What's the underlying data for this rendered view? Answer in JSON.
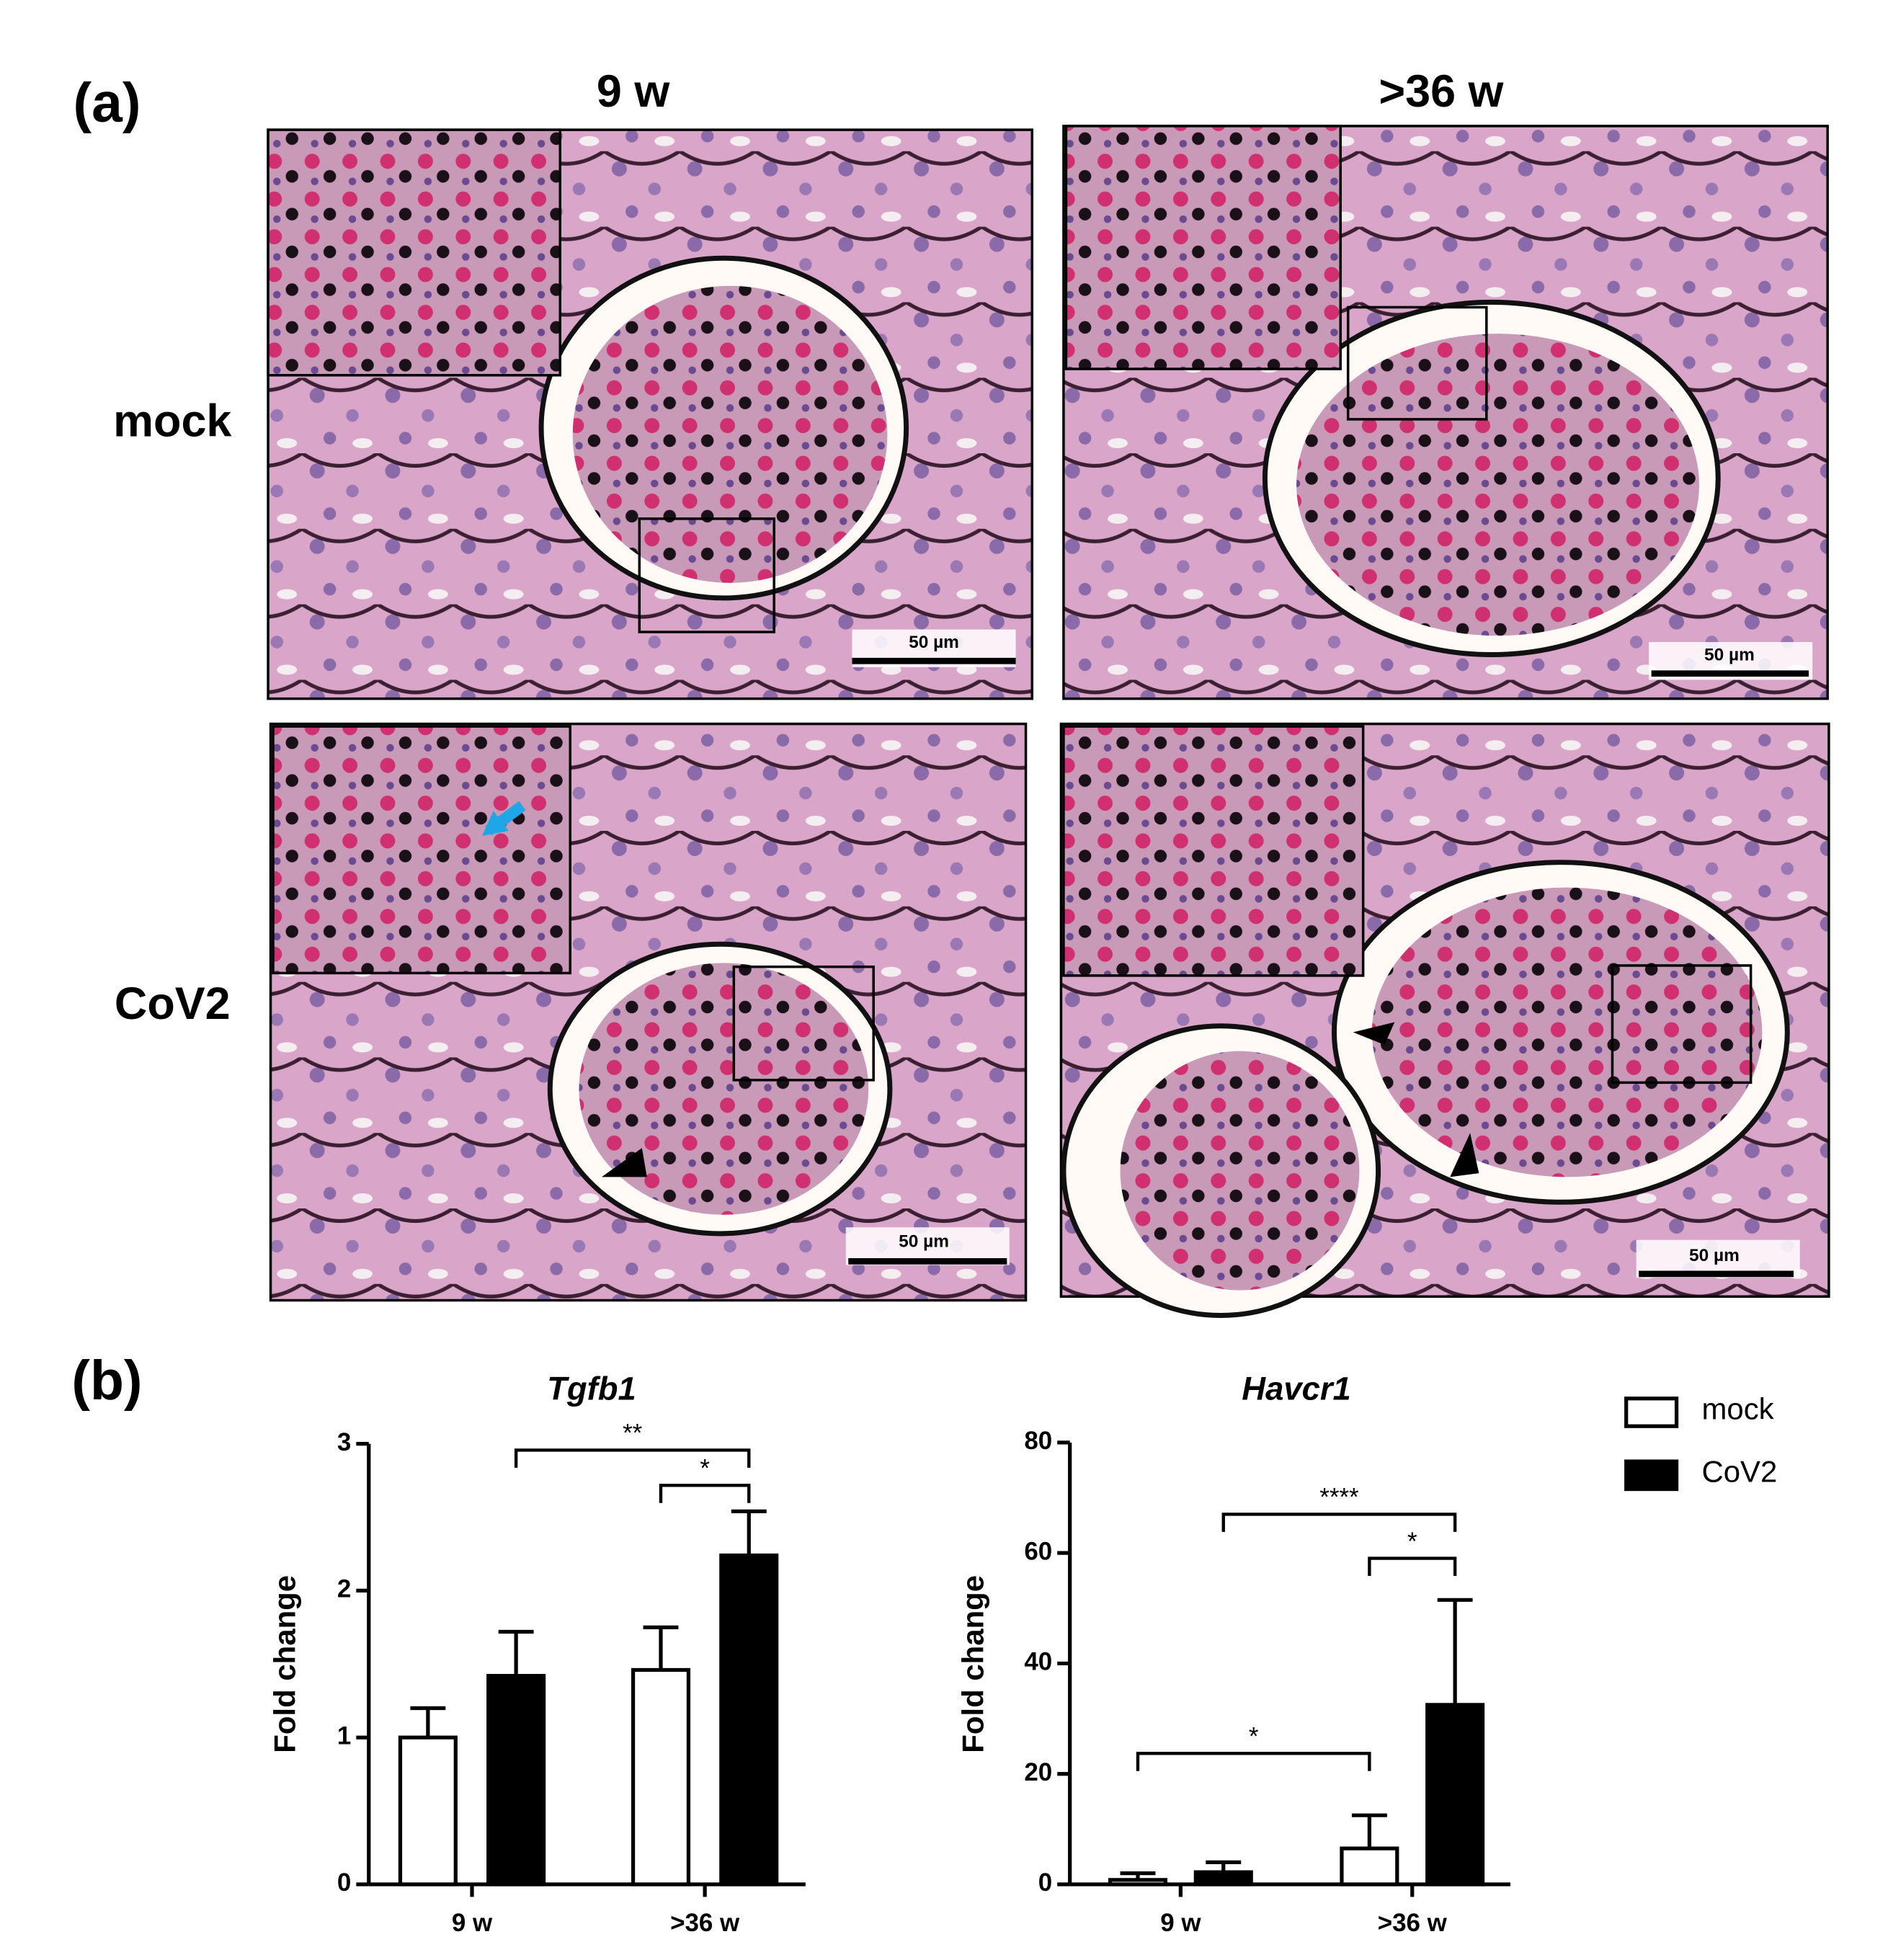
{
  "figure": {
    "panel_a": "(a)",
    "panel_b": "(b)",
    "columns": [
      "9 w",
      ">36 w"
    ],
    "rows": [
      "mock",
      "CoV2"
    ],
    "scale_bars": [
      "50 µm",
      "50 µm",
      "50 µm",
      "50 µm"
    ]
  },
  "chart_data": [
    {
      "type": "bar",
      "title": "Tgfb1",
      "y_label": "Fold change",
      "categories": [
        "9 w",
        ">36 w"
      ],
      "series": [
        {
          "name": "mock",
          "color": "#ffffff",
          "values": [
            1.0,
            1.46
          ],
          "errors": [
            0.2,
            0.29
          ]
        },
        {
          "name": "CoV2",
          "color": "#000000",
          "values": [
            1.42,
            2.24
          ],
          "errors": [
            0.3,
            0.3
          ]
        }
      ],
      "ylim": [
        0,
        3
      ],
      "yticks": [
        0,
        1,
        2,
        3
      ],
      "annotations": [
        "**",
        "*"
      ]
    },
    {
      "type": "bar",
      "title": "Havcr1",
      "y_label": "Fold change",
      "categories": [
        "9 w",
        ">36 w"
      ],
      "series": [
        {
          "color": "#ffffff",
          "values": [
            0.8,
            6.5
          ],
          "errors": [
            1.2,
            6
          ]
        },
        {
          "color": "#000000",
          "values": [
            2.2,
            32.5
          ],
          "errors": [
            1.8,
            19
          ]
        }
      ],
      "ylim": [
        0,
        80
      ],
      "yticks": [
        0,
        20,
        40,
        60,
        80
      ],
      "annotations": [
        "****",
        "*",
        "*"
      ]
    }
  ]
}
